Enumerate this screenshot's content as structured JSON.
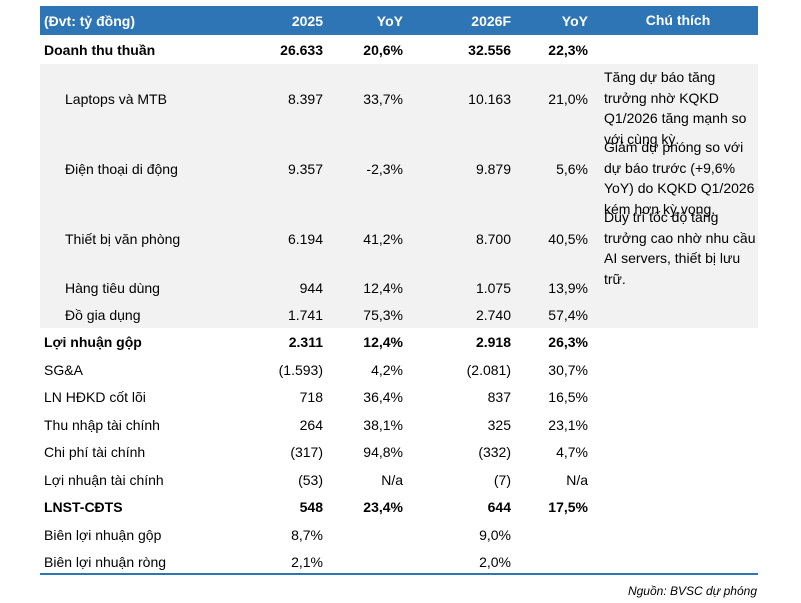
{
  "table": {
    "headers": [
      "(Đvt: tỷ đồng)",
      "2025",
      "YoY",
      "2026F",
      "YoY",
      "Chú thích"
    ],
    "rows": [
      {
        "label": "Doanh thu thuần",
        "v2025": "26.633",
        "yoy1": "20,6%",
        "v2026": "32.556",
        "yoy2": "22,3%",
        "note": ""
      },
      {
        "label": "Laptops và MTB",
        "v2025": "8.397",
        "yoy1": "33,7%",
        "v2026": "10.163",
        "yoy2": "21,0%",
        "note": "Tăng dự báo tăng trưởng nhờ KQKD Q1/2026 tăng mạnh so với cùng kỳ."
      },
      {
        "label": "Điện thoại di động",
        "v2025": "9.357",
        "yoy1": "-2,3%",
        "v2026": "9.879",
        "yoy2": "5,6%",
        "note": "Giảm dự phóng so với dự báo trước (+9,6% YoY) do KQKD Q1/2026 kém hơn kỳ vọng."
      },
      {
        "label": "Thiết bị văn phòng",
        "v2025": "6.194",
        "yoy1": "41,2%",
        "v2026": "8.700",
        "yoy2": "40,5%",
        "note": "Duy trì tốc độ tăng trưởng cao nhờ nhu cầu AI servers, thiết bị lưu trữ."
      },
      {
        "label": "Hàng tiêu dùng",
        "v2025": "944",
        "yoy1": "12,4%",
        "v2026": "1.075",
        "yoy2": "13,9%",
        "note": ""
      },
      {
        "label": "Đồ gia dụng",
        "v2025": "1.741",
        "yoy1": "75,3%",
        "v2026": "2.740",
        "yoy2": "57,4%",
        "note": ""
      },
      {
        "label": "Lợi nhuận gộp",
        "v2025": "2.311",
        "yoy1": "12,4%",
        "v2026": "2.918",
        "yoy2": "26,3%",
        "note": ""
      },
      {
        "label": "SG&A",
        "v2025": "(1.593)",
        "yoy1": "4,2%",
        "v2026": "(2.081)",
        "yoy2": "30,7%",
        "note": ""
      },
      {
        "label": "LN HĐKD cốt lõi",
        "v2025": "718",
        "yoy1": "36,4%",
        "v2026": "837",
        "yoy2": "16,5%",
        "note": ""
      },
      {
        "label": "Thu nhập tài chính",
        "v2025": "264",
        "yoy1": "38,1%",
        "v2026": "325",
        "yoy2": "23,1%",
        "note": ""
      },
      {
        "label": "Chi phí tài chính",
        "v2025": "(317)",
        "yoy1": "94,8%",
        "v2026": "(332)",
        "yoy2": "4,7%",
        "note": ""
      },
      {
        "label": "Lợi nhuận tài chính",
        "v2025": "(53)",
        "yoy1": "N/a",
        "v2026": "(7)",
        "yoy2": "N/a",
        "note": ""
      },
      {
        "label": "LNST-CĐTS",
        "v2025": "548",
        "yoy1": "23,4%",
        "v2026": "644",
        "yoy2": "17,5%",
        "note": ""
      },
      {
        "label": "Biên lợi nhuận gộp",
        "v2025": "8,7%",
        "yoy1": "",
        "v2026": "9,0%",
        "yoy2": "",
        "note": ""
      },
      {
        "label": "Biên lợi nhuận ròng",
        "v2025": "2,1%",
        "yoy1": "",
        "v2026": "2,0%",
        "yoy2": "",
        "note": ""
      }
    ],
    "source": "Nguồn: BVSC dự phóng",
    "colors": {
      "header_bg": "#2e75b6",
      "header_text": "#ffffff",
      "row_shade": "#f2f2f2",
      "rule": "#2e75b6"
    }
  }
}
